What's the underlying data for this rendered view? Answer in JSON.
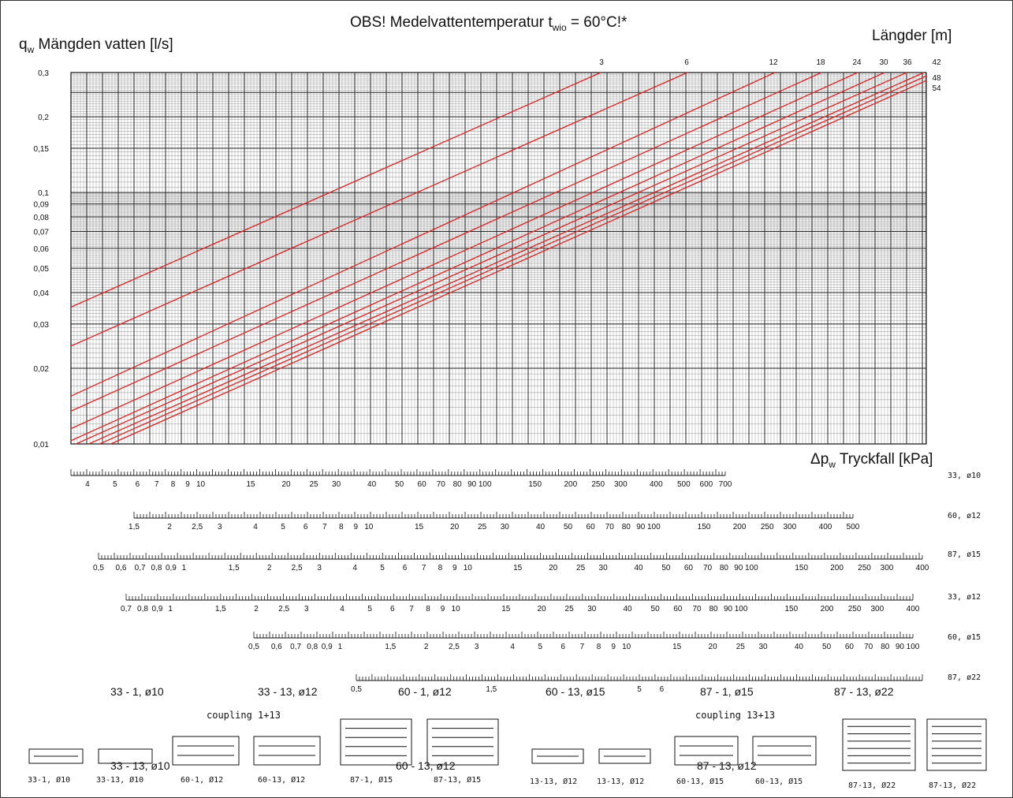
{
  "chart_data": {
    "type": "line",
    "title_main": "OBS! Medelvattentemperatur t",
    "title_sub": "wio",
    "title_tail": " = 60°C!*",
    "ylabel_main": "q",
    "ylabel_sub": "w",
    "ylabel_tail": " Mängden vatten [l/s]",
    "xlabel_main": "Δp",
    "xlabel_sub": "w",
    "xlabel_tail": " Tryckfall [kPa]",
    "legend_title": "Längder [m]",
    "y_scale": "log",
    "ylim": [
      0.01,
      0.3
    ],
    "y_ticks": [
      "0,01",
      "0,02",
      "0,03",
      "0,04",
      "0,05",
      "0,06",
      "0,07",
      "0,08",
      "0,09",
      "0,1",
      "0,15",
      "0,2",
      "0,3"
    ],
    "line_color": "#dd2222",
    "series": [
      {
        "name": "3",
        "q_at_left": 0.035
      },
      {
        "name": "6",
        "q_at_left": 0.0245
      },
      {
        "name": "12",
        "q_at_left": 0.0155
      },
      {
        "name": "18",
        "q_at_left": 0.0135
      },
      {
        "name": "24",
        "q_at_left": 0.0115
      },
      {
        "name": "30",
        "q_at_left": 0.0103
      },
      {
        "name": "36",
        "q_at_left": 0.0098
      },
      {
        "name": "42",
        "q_at_left": 0.0093
      },
      {
        "name": "48",
        "q_at_left": 0.0089
      },
      {
        "name": "54",
        "q_at_left": 0.0085
      }
    ],
    "pressure_scales": [
      {
        "name": "33, ø10",
        "min": 3.5,
        "max": 700,
        "labels": [
          "4",
          "5",
          "6",
          "7",
          "8",
          "9",
          "10",
          "15",
          "20",
          "25",
          "30",
          "40",
          "50",
          "60",
          "70",
          "80",
          "90",
          "100",
          "150",
          "200",
          "250",
          "300",
          "400",
          "500",
          "600",
          "700"
        ]
      },
      {
        "name": "60, ø12",
        "min": 1.5,
        "max": 500,
        "labels": [
          "1,5",
          "2",
          "2,5",
          "3",
          "4",
          "5",
          "6",
          "7",
          "8",
          "9",
          "10",
          "15",
          "20",
          "25",
          "30",
          "40",
          "50",
          "60",
          "70",
          "80",
          "90",
          "100",
          "150",
          "200",
          "250",
          "300",
          "400",
          "500"
        ]
      },
      {
        "name": "87, ø15",
        "min": 0.5,
        "max": 400,
        "labels": [
          "0,5",
          "0,6",
          "0,7",
          "0,8",
          "0,9",
          "1",
          "1,5",
          "2",
          "2,5",
          "3",
          "4",
          "5",
          "6",
          "7",
          "8",
          "9",
          "10",
          "15",
          "20",
          "25",
          "30",
          "40",
          "50",
          "60",
          "70",
          "80",
          "90",
          "100",
          "150",
          "200",
          "250",
          "300",
          "400"
        ]
      },
      {
        "name": "33, ø12",
        "min": 0.7,
        "max": 400,
        "labels": [
          "0,7",
          "0,8",
          "0,9",
          "1",
          "1,5",
          "2",
          "2,5",
          "3",
          "4",
          "5",
          "6",
          "7",
          "8",
          "9",
          "10",
          "15",
          "20",
          "25",
          "30",
          "40",
          "50",
          "60",
          "70",
          "80",
          "90",
          "100",
          "150",
          "200",
          "250",
          "300",
          "400"
        ]
      },
      {
        "name": "60, ø15",
        "min": 0.5,
        "max": 100,
        "labels": [
          "0,5",
          "0,6",
          "0,7",
          "0,8",
          "0,9",
          "1",
          "1,5",
          "2",
          "2,5",
          "3",
          "4",
          "5",
          "6",
          "7",
          "8",
          "9",
          "10",
          "15",
          "20",
          "25",
          "30",
          "40",
          "50",
          "60",
          "70",
          "80",
          "90",
          "100"
        ]
      },
      {
        "name": "87, ø22",
        "min": 0.5,
        "max": 50,
        "labels": [
          "0,5",
          "1,5",
          "5",
          "6"
        ]
      }
    ],
    "overlay_labels": [
      "33 - 1, ø10",
      "33 - 13, ø12",
      "60 - 1, ø12",
      "60 - 13, ø15",
      "87 - 1, ø15",
      "87 - 13, ø22",
      "33 - 13, ø10",
      "60 - 13, ø12",
      "87 - 13, ø12"
    ],
    "coupling_labels": [
      "coupling  1+13",
      "coupling  13+13"
    ],
    "diagram_labels": [
      "33-1, Ø10",
      "33-13, Ø10",
      "60-1, Ø12",
      "60-13, Ø12",
      "87-1, Ø15",
      "87-13, Ø15",
      "13-13, Ø12",
      "13-13, Ø12",
      "60-13, Ø15",
      "60-13, Ø15",
      "87-13, Ø22",
      "87-13, Ø22"
    ]
  }
}
